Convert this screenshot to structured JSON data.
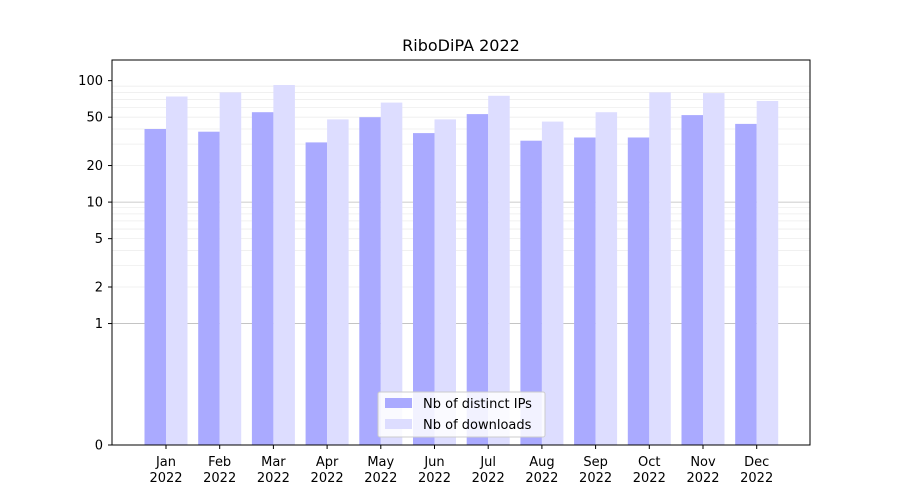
{
  "chart_data": {
    "type": "bar",
    "title": "RiboDiPA 2022",
    "xlabel": "",
    "ylabel": "",
    "y_scale": "symlog",
    "grid": true,
    "legend_position": "bottom-center",
    "categories": [
      [
        "Jan",
        "2022"
      ],
      [
        "Feb",
        "2022"
      ],
      [
        "Mar",
        "2022"
      ],
      [
        "Apr",
        "2022"
      ],
      [
        "May",
        "2022"
      ],
      [
        "Jun",
        "2022"
      ],
      [
        "Jul",
        "2022"
      ],
      [
        "Aug",
        "2022"
      ],
      [
        "Sep",
        "2022"
      ],
      [
        "Oct",
        "2022"
      ],
      [
        "Nov",
        "2022"
      ],
      [
        "Dec",
        "2022"
      ]
    ],
    "y_ticks": [
      0,
      1,
      2,
      5,
      10,
      20,
      50,
      100
    ],
    "series": [
      {
        "name": "Nb of distinct IPs",
        "color": "#aaaaff",
        "values": [
          40,
          38,
          55,
          31,
          50,
          37,
          53,
          32,
          34,
          34,
          52,
          44
        ]
      },
      {
        "name": "Nb of downloads",
        "color": "#ddddff",
        "values": [
          74,
          80,
          92,
          48,
          66,
          48,
          75,
          46,
          55,
          80,
          79,
          68
        ]
      }
    ]
  }
}
